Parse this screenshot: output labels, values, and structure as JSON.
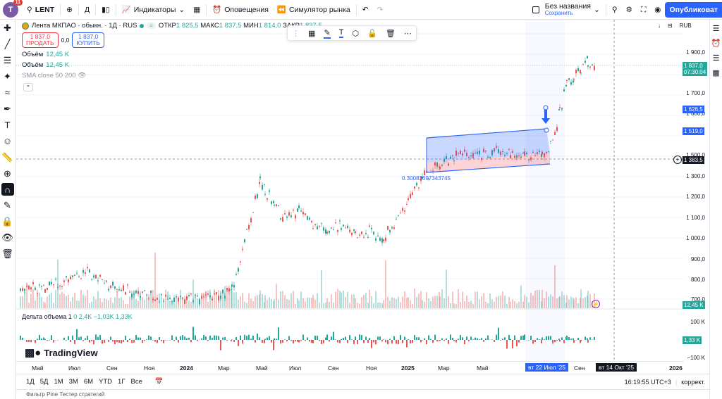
{
  "topbar": {
    "avatar_letter": "T",
    "avatar_badge": "11",
    "symbol": "LENT",
    "interval": "Д",
    "indicators_label": "Индикаторы",
    "alerts_label": "Оповещения",
    "replay_label": "Симулятор рынка",
    "unsaved_title": "Без названия",
    "unsaved_save": "Сохранить",
    "publish_label": "Опубликоват"
  },
  "legend": {
    "title": "Лента МКПАО · обыкн. · 1Д · RUS",
    "open_label": "ОТКР",
    "open": "1 825,5",
    "high_label": "МАКС",
    "high": "1 837,5",
    "low_label": "МИН",
    "low": "1 814,0",
    "close_label": "ЗАКР",
    "close": "1 837,5",
    "currency": "RUB"
  },
  "trade": {
    "sell_price": "1 837,0",
    "sell_label": "ПРОДАТЬ",
    "spread": "0,0",
    "buy_price": "1 837,0",
    "buy_label": "КУПИТЬ"
  },
  "indicators": [
    {
      "name": "Объём",
      "value": "12,45 K"
    },
    {
      "name": "Объём",
      "value": "12,45 K"
    },
    {
      "name": "SMA close 50 200",
      "value": ""
    }
  ],
  "price_axis": {
    "labels": [
      "1 900,0",
      "1 700,0",
      "1 600,0",
      "1 500,0",
      "1 300,0",
      "1 200,0",
      "1 100,0",
      "1 000,0",
      "900,0",
      "800,0",
      "700,0"
    ],
    "last_price": "1 837,0",
    "countdown": "07:30:04",
    "tag_upper": "1 626,5",
    "tag_lower": "1 519,0",
    "crosshair": "1 383,5",
    "volume_tag": "12,45 K"
  },
  "channel_label": "0.30083697343745",
  "delta_volume": {
    "title": "Дельта объема 1",
    "values": "0  2,4K  −1,03K  1,33K",
    "axis_labels": [
      "100 K",
      "−100 K"
    ],
    "tag": "1,33 K"
  },
  "brand": "TradingView",
  "time_axis": {
    "labels": [
      "Май",
      "Июл",
      "Сен",
      "Ноя",
      "2024",
      "Мар",
      "Май",
      "Июл",
      "Сен",
      "Ноя",
      "2025",
      "Мар",
      "Май",
      "Сен",
      "2026"
    ],
    "highlight_range": "вт 22 Июл '25",
    "highlight_cursor": "вт 14 Окт '25"
  },
  "bottombar": {
    "ranges": [
      "1Д",
      "5Д",
      "1М",
      "3М",
      "6М",
      "YTD",
      "1Г",
      "Все"
    ],
    "clock": "16:19:55 UTC+3",
    "adjust": "коррект."
  },
  "footer": {
    "text": "Фильтр Pine    Тестер стратегий"
  },
  "colors": {
    "up": "#26a69a",
    "down": "#ef5350",
    "accent": "#2962ff"
  }
}
